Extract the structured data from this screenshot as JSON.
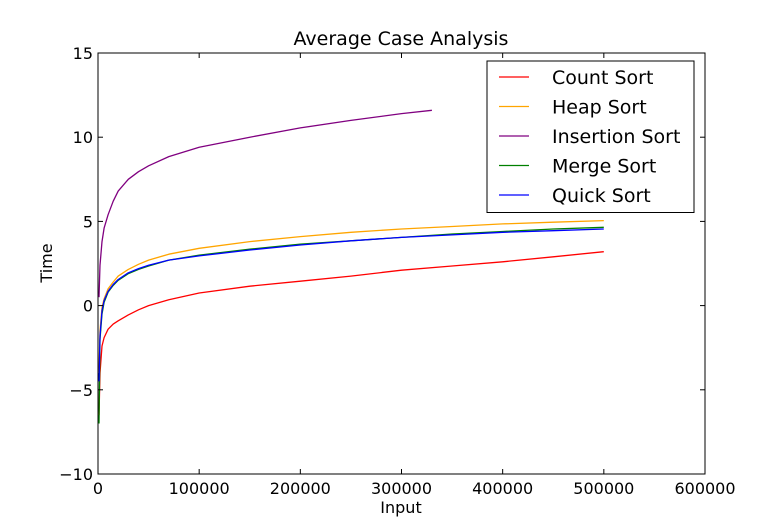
{
  "chart_data": {
    "type": "line",
    "title": "Average Case Analysis",
    "xlabel": "Input",
    "ylabel": "Time",
    "xlim": [
      0,
      600000
    ],
    "ylim": [
      -10,
      15
    ],
    "xticks": [
      0,
      100000,
      200000,
      300000,
      400000,
      500000,
      600000
    ],
    "xtick_labels": [
      "0",
      "100000",
      "200000",
      "300000",
      "400000",
      "500000",
      "600000"
    ],
    "yticks": [
      -10,
      -5,
      0,
      5,
      10,
      15
    ],
    "ytick_labels": [
      "−10",
      "−5",
      "0",
      "5",
      "10",
      "15"
    ],
    "grid": false,
    "legend_position": "top-right",
    "series": [
      {
        "name": "Count Sort",
        "color": "#ff0000",
        "x": [
          1000,
          2000,
          4000,
          6000,
          10000,
          15000,
          20000,
          30000,
          40000,
          50000,
          70000,
          100000,
          150000,
          200000,
          250000,
          300000,
          350000,
          400000,
          450000,
          500000
        ],
        "y": [
          -6.5,
          -4.0,
          -2.4,
          -1.9,
          -1.4,
          -1.1,
          -0.9,
          -0.55,
          -0.25,
          0.0,
          0.35,
          0.75,
          1.15,
          1.45,
          1.75,
          2.1,
          2.35,
          2.6,
          2.9,
          3.2
        ]
      },
      {
        "name": "Heap Sort",
        "color": "#ffa500",
        "x": [
          1000,
          2000,
          4000,
          6000,
          10000,
          15000,
          20000,
          30000,
          40000,
          50000,
          70000,
          100000,
          150000,
          200000,
          250000,
          300000,
          350000,
          400000,
          450000,
          500000
        ],
        "y": [
          -4.0,
          -1.5,
          -0.1,
          0.4,
          1.0,
          1.4,
          1.75,
          2.15,
          2.45,
          2.7,
          3.05,
          3.4,
          3.8,
          4.1,
          4.35,
          4.55,
          4.7,
          4.85,
          4.95,
          5.05
        ]
      },
      {
        "name": "Insertion Sort",
        "color": "#800080",
        "x": [
          1000,
          2000,
          4000,
          6000,
          10000,
          15000,
          20000,
          30000,
          40000,
          50000,
          70000,
          100000,
          150000,
          200000,
          250000,
          300000,
          330000
        ],
        "y": [
          0.5,
          2.4,
          3.8,
          4.6,
          5.4,
          6.2,
          6.8,
          7.5,
          7.95,
          8.3,
          8.85,
          9.4,
          10.0,
          10.55,
          11.0,
          11.4,
          11.6
        ]
      },
      {
        "name": "Merge Sort",
        "color": "#008000",
        "x": [
          1000,
          2000,
          4000,
          6000,
          10000,
          15000,
          20000,
          30000,
          40000,
          50000,
          70000,
          100000,
          150000,
          200000,
          250000,
          300000,
          350000,
          400000,
          450000,
          500000
        ],
        "y": [
          -7.0,
          -2.0,
          -0.5,
          0.2,
          0.8,
          1.2,
          1.5,
          1.9,
          2.15,
          2.35,
          2.7,
          3.0,
          3.35,
          3.65,
          3.85,
          4.05,
          4.25,
          4.4,
          4.55,
          4.65
        ]
      },
      {
        "name": "Quick Sort",
        "color": "#0000ff",
        "x": [
          1000,
          2000,
          4000,
          6000,
          10000,
          15000,
          20000,
          30000,
          40000,
          50000,
          70000,
          100000,
          150000,
          200000,
          250000,
          300000,
          350000,
          400000,
          450000,
          500000
        ],
        "y": [
          -4.5,
          -1.8,
          -0.3,
          0.3,
          0.85,
          1.25,
          1.55,
          1.95,
          2.2,
          2.4,
          2.7,
          2.95,
          3.3,
          3.6,
          3.85,
          4.05,
          4.2,
          4.35,
          4.45,
          4.55
        ]
      }
    ]
  }
}
